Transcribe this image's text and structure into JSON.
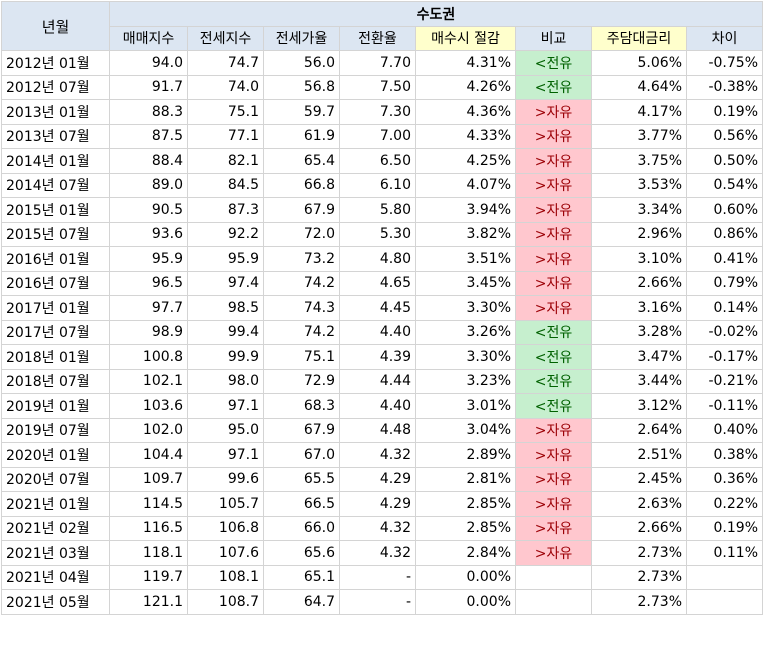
{
  "header": {
    "month_label": "년월",
    "region": "수도권",
    "columns": [
      "매매지수",
      "전세지수",
      "전세가율",
      "전환율",
      "매수시 절감",
      "비교",
      "주담대금리",
      "차이"
    ]
  },
  "rows": [
    {
      "month": "2012년 01월",
      "sale": "94.0",
      "jeonse": "74.7",
      "ratio": "56.0",
      "conv": "7.70",
      "saving": "4.31%",
      "cmp": "<전유",
      "cmp_type": "green",
      "rate": "5.06%",
      "diff": "-0.75%"
    },
    {
      "month": "2012년 07월",
      "sale": "91.7",
      "jeonse": "74.0",
      "ratio": "56.8",
      "conv": "7.50",
      "saving": "4.26%",
      "cmp": "<전유",
      "cmp_type": "green",
      "rate": "4.64%",
      "diff": "-0.38%"
    },
    {
      "month": "2013년 01월",
      "sale": "88.3",
      "jeonse": "75.1",
      "ratio": "59.7",
      "conv": "7.30",
      "saving": "4.36%",
      "cmp": ">자유",
      "cmp_type": "red",
      "rate": "4.17%",
      "diff": "0.19%"
    },
    {
      "month": "2013년 07월",
      "sale": "87.5",
      "jeonse": "77.1",
      "ratio": "61.9",
      "conv": "7.00",
      "saving": "4.33%",
      "cmp": ">자유",
      "cmp_type": "red",
      "rate": "3.77%",
      "diff": "0.56%"
    },
    {
      "month": "2014년 01월",
      "sale": "88.4",
      "jeonse": "82.1",
      "ratio": "65.4",
      "conv": "6.50",
      "saving": "4.25%",
      "cmp": ">자유",
      "cmp_type": "red",
      "rate": "3.75%",
      "diff": "0.50%"
    },
    {
      "month": "2014년 07월",
      "sale": "89.0",
      "jeonse": "84.5",
      "ratio": "66.8",
      "conv": "6.10",
      "saving": "4.07%",
      "cmp": ">자유",
      "cmp_type": "red",
      "rate": "3.53%",
      "diff": "0.54%"
    },
    {
      "month": "2015년 01월",
      "sale": "90.5",
      "jeonse": "87.3",
      "ratio": "67.9",
      "conv": "5.80",
      "saving": "3.94%",
      "cmp": ">자유",
      "cmp_type": "red",
      "rate": "3.34%",
      "diff": "0.60%"
    },
    {
      "month": "2015년 07월",
      "sale": "93.6",
      "jeonse": "92.2",
      "ratio": "72.0",
      "conv": "5.30",
      "saving": "3.82%",
      "cmp": ">자유",
      "cmp_type": "red",
      "rate": "2.96%",
      "diff": "0.86%"
    },
    {
      "month": "2016년 01월",
      "sale": "95.9",
      "jeonse": "95.9",
      "ratio": "73.2",
      "conv": "4.80",
      "saving": "3.51%",
      "cmp": ">자유",
      "cmp_type": "red",
      "rate": "3.10%",
      "diff": "0.41%"
    },
    {
      "month": "2016년 07월",
      "sale": "96.5",
      "jeonse": "97.4",
      "ratio": "74.2",
      "conv": "4.65",
      "saving": "3.45%",
      "cmp": ">자유",
      "cmp_type": "red",
      "rate": "2.66%",
      "diff": "0.79%"
    },
    {
      "month": "2017년 01월",
      "sale": "97.7",
      "jeonse": "98.5",
      "ratio": "74.3",
      "conv": "4.45",
      "saving": "3.30%",
      "cmp": ">자유",
      "cmp_type": "red",
      "rate": "3.16%",
      "diff": "0.14%"
    },
    {
      "month": "2017년 07월",
      "sale": "98.9",
      "jeonse": "99.4",
      "ratio": "74.2",
      "conv": "4.40",
      "saving": "3.26%",
      "cmp": "<전유",
      "cmp_type": "green",
      "rate": "3.28%",
      "diff": "-0.02%"
    },
    {
      "month": "2018년 01월",
      "sale": "100.8",
      "jeonse": "99.9",
      "ratio": "75.1",
      "conv": "4.39",
      "saving": "3.30%",
      "cmp": "<전유",
      "cmp_type": "green",
      "rate": "3.47%",
      "diff": "-0.17%"
    },
    {
      "month": "2018년 07월",
      "sale": "102.1",
      "jeonse": "98.0",
      "ratio": "72.9",
      "conv": "4.44",
      "saving": "3.23%",
      "cmp": "<전유",
      "cmp_type": "green",
      "rate": "3.44%",
      "diff": "-0.21%"
    },
    {
      "month": "2019년 01월",
      "sale": "103.6",
      "jeonse": "97.1",
      "ratio": "68.3",
      "conv": "4.40",
      "saving": "3.01%",
      "cmp": "<전유",
      "cmp_type": "green",
      "rate": "3.12%",
      "diff": "-0.11%"
    },
    {
      "month": "2019년 07월",
      "sale": "102.0",
      "jeonse": "95.0",
      "ratio": "67.9",
      "conv": "4.48",
      "saving": "3.04%",
      "cmp": ">자유",
      "cmp_type": "red",
      "rate": "2.64%",
      "diff": "0.40%"
    },
    {
      "month": "2020년 01월",
      "sale": "104.4",
      "jeonse": "97.1",
      "ratio": "67.0",
      "conv": "4.32",
      "saving": "2.89%",
      "cmp": ">자유",
      "cmp_type": "red",
      "rate": "2.51%",
      "diff": "0.38%"
    },
    {
      "month": "2020년 07월",
      "sale": "109.7",
      "jeonse": "99.6",
      "ratio": "65.5",
      "conv": "4.29",
      "saving": "2.81%",
      "cmp": ">자유",
      "cmp_type": "red",
      "rate": "2.45%",
      "diff": "0.36%"
    },
    {
      "month": "2021년 01월",
      "sale": "114.5",
      "jeonse": "105.7",
      "ratio": "66.5",
      "conv": "4.29",
      "saving": "2.85%",
      "cmp": ">자유",
      "cmp_type": "red",
      "rate": "2.63%",
      "diff": "0.22%"
    },
    {
      "month": "2021년 02월",
      "sale": "116.5",
      "jeonse": "106.8",
      "ratio": "66.0",
      "conv": "4.32",
      "saving": "2.85%",
      "cmp": ">자유",
      "cmp_type": "red",
      "rate": "2.66%",
      "diff": "0.19%"
    },
    {
      "month": "2021년 03월",
      "sale": "118.1",
      "jeonse": "107.6",
      "ratio": "65.6",
      "conv": "4.32",
      "saving": "2.84%",
      "cmp": ">자유",
      "cmp_type": "red",
      "rate": "2.73%",
      "diff": "0.11%"
    },
    {
      "month": "2021년 04월",
      "sale": "119.7",
      "jeonse": "108.1",
      "ratio": "65.1",
      "conv": "-",
      "saving": "0.00%",
      "cmp": "",
      "cmp_type": "none",
      "rate": "2.73%",
      "diff": ""
    },
    {
      "month": "2021년 05월",
      "sale": "121.1",
      "jeonse": "108.7",
      "ratio": "64.7",
      "conv": "-",
      "saving": "0.00%",
      "cmp": "",
      "cmp_type": "none",
      "rate": "2.73%",
      "diff": ""
    }
  ],
  "colors": {
    "header_bg": "#dce6f2",
    "highlight_header_bg": "#ffffcc",
    "green_bg": "#c6efce",
    "green_text": "#006100",
    "red_bg": "#ffc7ce",
    "red_text": "#9c0006",
    "grid": "#d4d4d4"
  }
}
